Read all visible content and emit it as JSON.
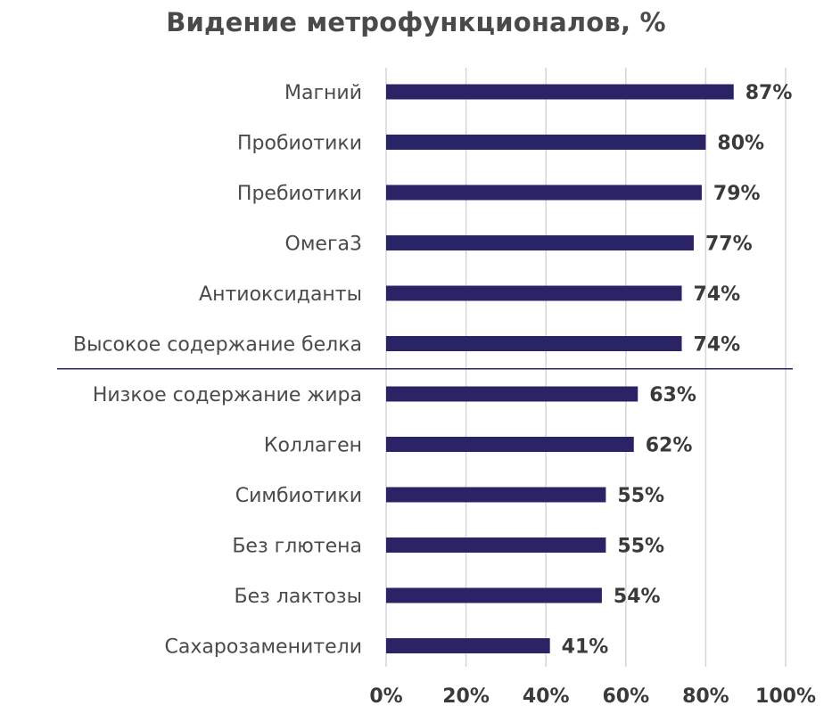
{
  "chart_data": {
    "type": "bar",
    "orientation": "horizontal",
    "title": "Видение метрофункционалов, %",
    "xlabel": "",
    "ylabel": "",
    "categories": [
      "Магний",
      "Пробиотики",
      "Пребиотики",
      "Омега3",
      "Антиоксиданты",
      "Высокое содержание белка",
      "Низкое содержание жира",
      "Коллаген",
      "Симбиотики",
      "Без глютена",
      "Без лактозы",
      "Сахарозаменители"
    ],
    "values": [
      87,
      80,
      79,
      77,
      74,
      74,
      63,
      62,
      55,
      55,
      54,
      41
    ],
    "value_labels": [
      "87%",
      "80%",
      "79%",
      "77%",
      "74%",
      "74%",
      "63%",
      "62%",
      "55%",
      "55%",
      "54%",
      "41%"
    ],
    "xlim": [
      0,
      100
    ],
    "x_ticks": [
      0,
      20,
      40,
      60,
      80,
      100
    ],
    "x_tick_labels": [
      "0%",
      "20%",
      "40%",
      "60%",
      "80%",
      "100%"
    ],
    "grid": "vertical",
    "separator_after_index": 5,
    "legend": "none",
    "colors": {
      "bar": "#2a2466",
      "separator": "#2a2466",
      "grid": "#d6d6d6",
      "text": "#4a4a4a"
    }
  }
}
